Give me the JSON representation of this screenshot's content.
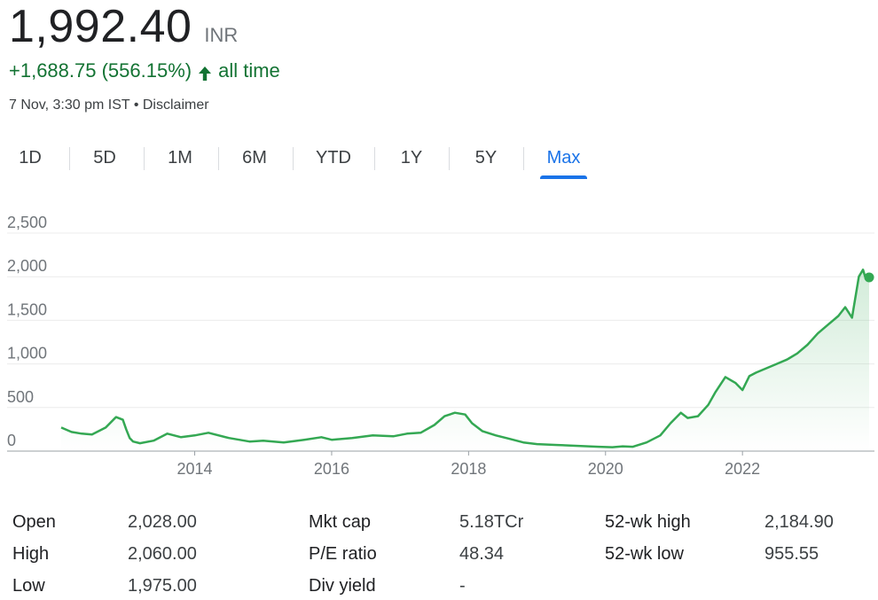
{
  "header": {
    "price": "1,992.40",
    "currency": "INR",
    "change": "+1,688.75 (556.15%)",
    "change_period": "all time",
    "timestamp": "7 Nov, 3:30 pm IST",
    "separator": "•",
    "disclaimer": "Disclaimer"
  },
  "colors": {
    "accent": "#1a73e8",
    "positive": "#137333",
    "line": "#34a853"
  },
  "icons": {
    "change_arrow": "arrow-up-icon"
  },
  "tabs": [
    {
      "label": "1D",
      "active": false
    },
    {
      "label": "5D",
      "active": false
    },
    {
      "label": "1M",
      "active": false
    },
    {
      "label": "6M",
      "active": false
    },
    {
      "label": "YTD",
      "active": false
    },
    {
      "label": "1Y",
      "active": false
    },
    {
      "label": "5Y",
      "active": false
    },
    {
      "label": "Max",
      "active": true
    }
  ],
  "chart_data": {
    "type": "area",
    "title": "",
    "xlabel": "",
    "ylabel": "",
    "ylim": [
      0,
      2500
    ],
    "yticks": [
      "0",
      "500",
      "1,000",
      "1,500",
      "2,000",
      "2,500"
    ],
    "yticks_values": [
      0,
      500,
      1000,
      1500,
      2000,
      2500
    ],
    "xlim": [
      2012.05,
      2023.85
    ],
    "xticks": [
      "2014",
      "2016",
      "2018",
      "2020",
      "2022"
    ],
    "xticks_values": [
      2014,
      2016,
      2018,
      2020,
      2022
    ],
    "grid": true,
    "series": [
      {
        "x": [
          2012.05,
          2012.2,
          2012.35,
          2012.5,
          2012.7,
          2012.85,
          2012.95,
          2013.0,
          2013.05,
          2013.1,
          2013.2,
          2013.4,
          2013.6,
          2013.8,
          2014.0,
          2014.2,
          2014.5,
          2014.8,
          2015.0,
          2015.3,
          2015.6,
          2015.85,
          2016.0,
          2016.3,
          2016.6,
          2016.9,
          2017.1,
          2017.3,
          2017.5,
          2017.65,
          2017.8,
          2017.95,
          2018.05,
          2018.2,
          2018.4,
          2018.6,
          2018.8,
          2019.0,
          2019.3,
          2019.6,
          2019.9,
          2020.1,
          2020.25,
          2020.4,
          2020.6,
          2020.8,
          2020.95,
          2021.1,
          2021.2,
          2021.35,
          2021.5,
          2021.6,
          2021.75,
          2021.9,
          2022.0,
          2022.1,
          2022.2,
          2022.35,
          2022.5,
          2022.65,
          2022.8,
          2022.95,
          2023.1,
          2023.25,
          2023.4,
          2023.5,
          2023.6,
          2023.7,
          2023.76,
          2023.8,
          2023.85
        ],
        "values": [
          270,
          220,
          200,
          190,
          270,
          390,
          360,
          250,
          150,
          110,
          90,
          120,
          200,
          160,
          180,
          210,
          150,
          110,
          120,
          100,
          130,
          160,
          130,
          150,
          180,
          170,
          200,
          210,
          300,
          400,
          440,
          420,
          320,
          230,
          180,
          140,
          100,
          80,
          70,
          60,
          50,
          45,
          55,
          50,
          100,
          180,
          320,
          440,
          380,
          400,
          530,
          670,
          850,
          780,
          700,
          860,
          900,
          950,
          1000,
          1050,
          1120,
          1220,
          1350,
          1450,
          1550,
          1650,
          1530,
          2000,
          2080,
          1980,
          1992.4
        ]
      }
    ]
  },
  "stats": {
    "col1": [
      {
        "label": "Open",
        "value": "2,028.00"
      },
      {
        "label": "High",
        "value": "2,060.00"
      },
      {
        "label": "Low",
        "value": "1,975.00"
      }
    ],
    "col2": [
      {
        "label": "Mkt cap",
        "value": "5.18TCr"
      },
      {
        "label": "P/E ratio",
        "value": "48.34"
      },
      {
        "label": "Div yield",
        "value": "-"
      }
    ],
    "col3": [
      {
        "label": "52-wk high",
        "value": "2,184.90"
      },
      {
        "label": "52-wk low",
        "value": "955.55"
      }
    ]
  }
}
